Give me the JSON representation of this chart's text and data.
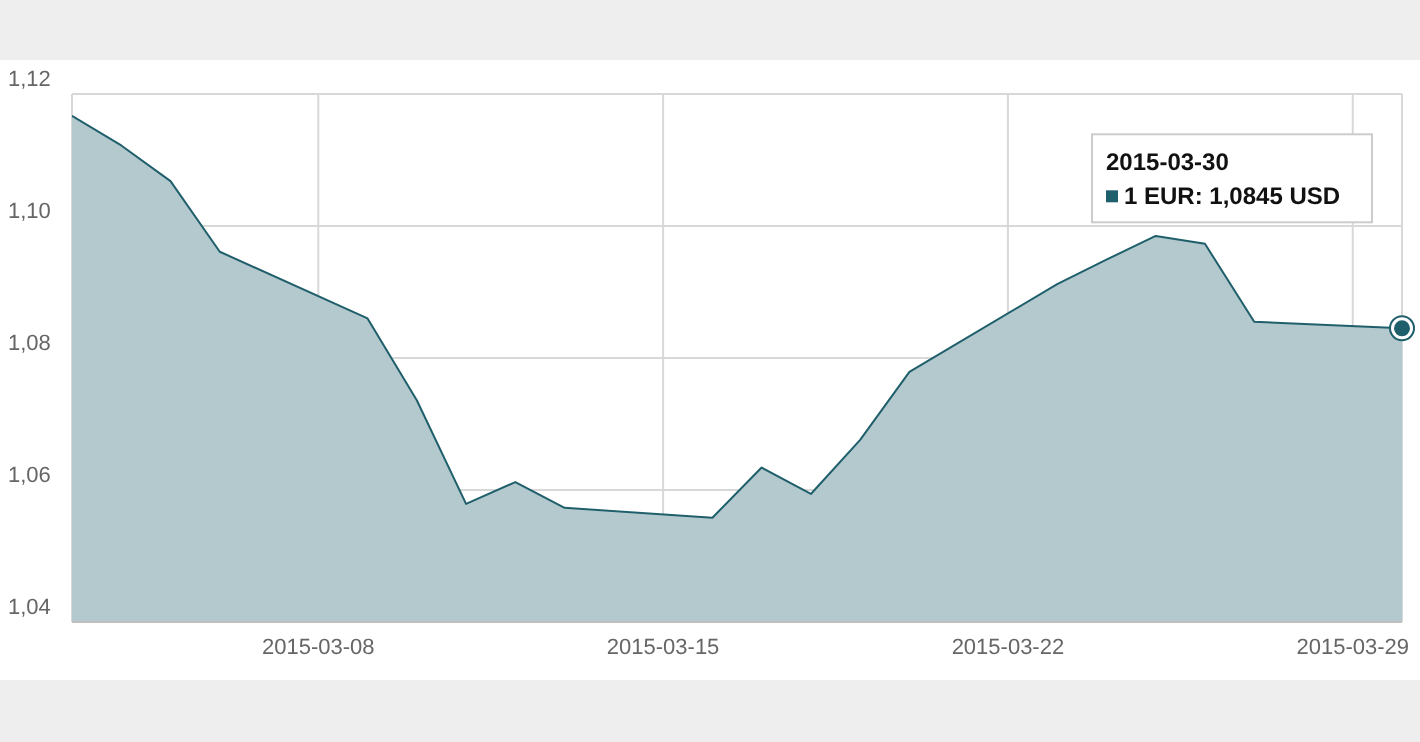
{
  "chart_data": {
    "type": "area",
    "x": [
      "2015-03-03",
      "2015-03-04",
      "2015-03-05",
      "2015-03-06",
      "2015-03-09",
      "2015-03-10",
      "2015-03-11",
      "2015-03-12",
      "2015-03-13",
      "2015-03-16",
      "2015-03-17",
      "2015-03-18",
      "2015-03-19",
      "2015-03-20",
      "2015-03-23",
      "2015-03-24",
      "2015-03-25",
      "2015-03-26",
      "2015-03-27",
      "2015-03-30"
    ],
    "series": [
      {
        "color": "#1f5f6b",
        "values": [
          1.1167,
          1.1122,
          1.1068,
          1.0961,
          1.086,
          1.0736,
          1.0579,
          1.0612,
          1.0573,
          1.0558,
          1.0634,
          1.0594,
          1.0676,
          1.0779,
          1.0912,
          1.0949,
          1.0985,
          1.0973,
          1.0855,
          1.0845
        ]
      }
    ],
    "xlim": [
      "2015-03-03",
      "2015-03-30"
    ],
    "xticks": [
      "2015-03-08",
      "2015-03-15",
      "2015-03-22",
      "2015-03-29"
    ],
    "ylim": [
      1.04,
      1.12
    ],
    "yticks": [
      {
        "value": 1.04,
        "label": "1,04"
      },
      {
        "value": 1.06,
        "label": "1,06"
      },
      {
        "value": 1.08,
        "label": "1,08"
      },
      {
        "value": 1.1,
        "label": "1,10"
      },
      {
        "value": 1.12,
        "label": "1,12"
      }
    ],
    "grid": true,
    "marker": "none",
    "annotations": [
      "2015-03-30",
      "1 EUR: 1,0845 USD"
    ]
  }
}
